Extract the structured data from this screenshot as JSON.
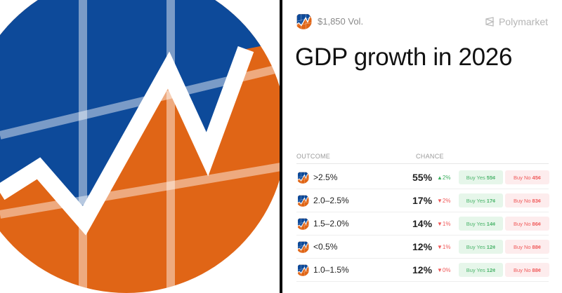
{
  "market": {
    "volume": "$1,850 Vol.",
    "brand": "Polymarket",
    "title": "GDP growth in 2026"
  },
  "table": {
    "headers": {
      "outcome": "OUTCOME",
      "chance": "CHANCE"
    },
    "rows": [
      {
        "outcome": ">2.5%",
        "chance": "55%",
        "change": "▲2%",
        "direction": "up",
        "yes_label": "Buy Yes",
        "yes_price": "55¢",
        "no_label": "Buy No",
        "no_price": "45¢"
      },
      {
        "outcome": "2.0–2.5%",
        "chance": "17%",
        "change": "▼2%",
        "direction": "down",
        "yes_label": "Buy Yes",
        "yes_price": "17¢",
        "no_label": "Buy No",
        "no_price": "83¢"
      },
      {
        "outcome": "1.5–2.0%",
        "chance": "14%",
        "change": "▼1%",
        "direction": "down",
        "yes_label": "Buy Yes",
        "yes_price": "14¢",
        "no_label": "Buy No",
        "no_price": "86¢"
      },
      {
        "outcome": "<0.5%",
        "chance": "12%",
        "change": "▼1%",
        "direction": "down",
        "yes_label": "Buy Yes",
        "yes_price": "12¢",
        "no_label": "Buy No",
        "no_price": "88¢"
      },
      {
        "outcome": "1.0–1.5%",
        "chance": "12%",
        "change": "▼0%",
        "direction": "down",
        "yes_label": "Buy Yes",
        "yes_price": "12¢",
        "no_label": "Buy No",
        "no_price": "88¢"
      }
    ]
  },
  "colors": {
    "blue": "#0d4a9a",
    "orange": "#e06516",
    "up": "#3db060",
    "down": "#f05a5a"
  }
}
